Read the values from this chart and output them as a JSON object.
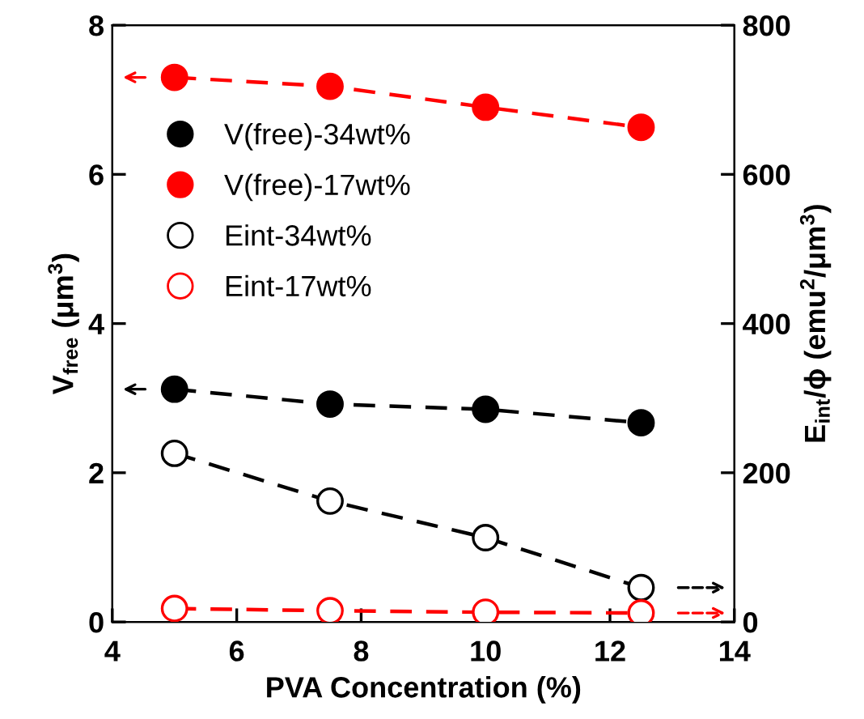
{
  "chart_data": {
    "type": "line",
    "xlabel": "PVA Concentration (%)",
    "ylabel": "V$_{free}$ (μm$^{3}$)",
    "y2label": "E$_{int}$/ϕ (emu$^{2}$/μm$^{3}$)",
    "x": [
      5,
      7.5,
      10,
      12.5
    ],
    "series": [
      {
        "name": "V(free)-34wt%",
        "color": "#000000",
        "values": [
          3.12,
          2.92,
          2.85,
          2.67
        ],
        "marker": "circle"
      },
      {
        "name": "V(free)-17wt%",
        "color": "#ff0000",
        "values": [
          7.3,
          7.18,
          6.9,
          6.63
        ],
        "marker": "circle"
      },
      {
        "name": "Eint-34wt%",
        "color": "#000000",
        "values": [
          226,
          162,
          113,
          46
        ],
        "marker": "circle",
        "axis": "y2"
      },
      {
        "name": "Eint-17wt%",
        "color": "#ff0000",
        "values": [
          18,
          15,
          13,
          12
        ],
        "marker": "circle",
        "axis": "y2"
      }
    ],
    "line_style": "dashed",
    "xlim": [
      4,
      14
    ],
    "xticks": [
      4,
      6,
      8,
      10,
      12,
      14
    ],
    "ylim": [
      0,
      8
    ],
    "yticks": [
      0,
      2,
      4,
      6,
      8
    ],
    "y2lim": [
      0,
      800
    ],
    "y2ticks": [
      0,
      200,
      400,
      600,
      800
    ],
    "grid": false,
    "legend": "top left"
  }
}
